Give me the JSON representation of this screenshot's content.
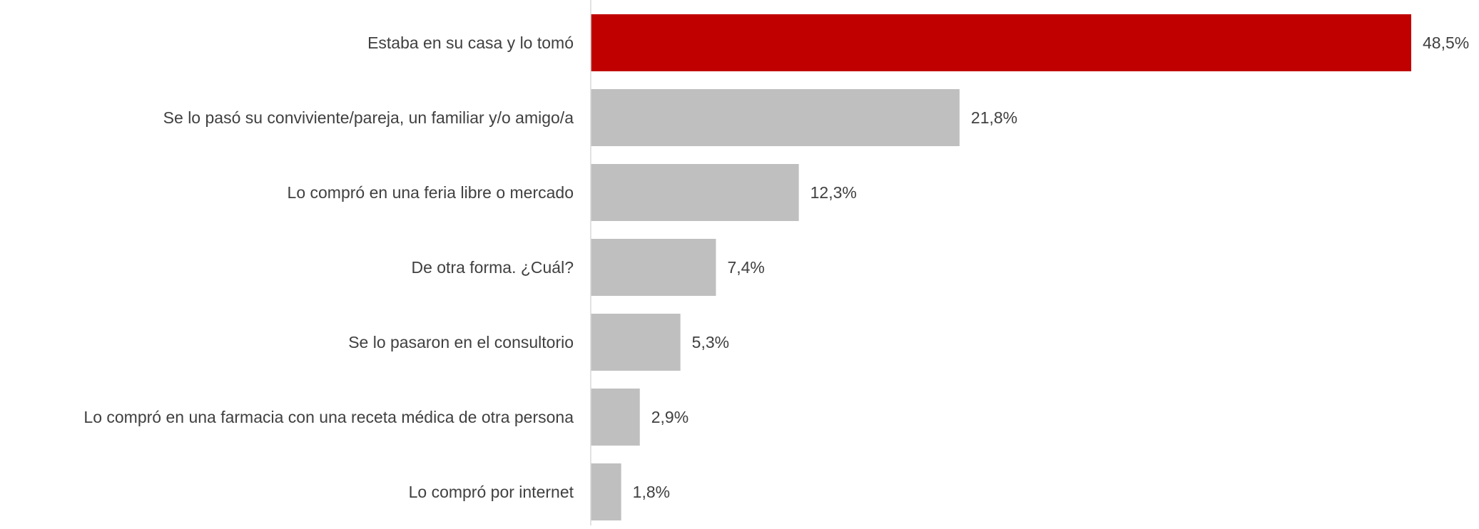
{
  "chart_data": {
    "type": "bar",
    "orientation": "horizontal",
    "title": "",
    "xlabel": "",
    "ylabel": "",
    "categories": [
      "Estaba en su casa y lo tomó",
      "Se lo pasó su conviviente/pareja, un familiar y/o amigo/a",
      "Lo compró en una feria libre o mercado",
      "De otra forma. ¿Cuál?",
      "Se lo pasaron en el consultorio",
      "Lo compró en una farmacia con una receta médica de otra persona",
      "Lo compró por internet"
    ],
    "values": [
      48.5,
      21.8,
      12.3,
      7.4,
      5.3,
      2.9,
      1.8
    ],
    "value_labels": [
      "48,5%",
      "21,8%",
      "12,3%",
      "7,4%",
      "5,3%",
      "2,9%",
      "1,8%"
    ],
    "xlim": [
      0,
      48.5
    ],
    "grid": false,
    "legend": "none",
    "colors": {
      "highlight": "#C00000",
      "default": "#BFBFBF",
      "axis": "#D9D9D9",
      "text": "#404040"
    },
    "highlight_index": 0
  }
}
